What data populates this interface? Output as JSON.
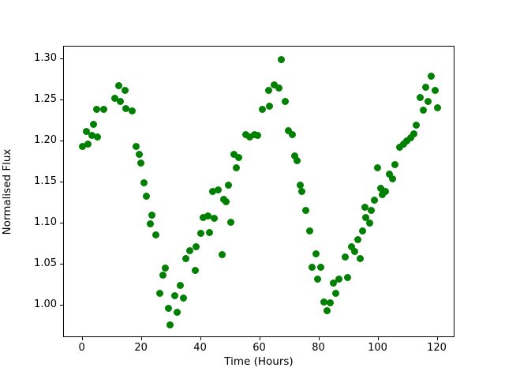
{
  "figure": {
    "background": "#ffffff"
  },
  "chart_data": {
    "type": "scatter",
    "title": "",
    "xlabel": "Time (Hours)",
    "ylabel": "Normalised Flux",
    "marker_color": "#008000",
    "marker_diameter_px": 9,
    "grid": false,
    "legend": null,
    "xlim": [
      -6.3,
      126.0
    ],
    "ylim": [
      0.9598,
      1.3162
    ],
    "x_ticks": [
      0,
      20,
      40,
      60,
      80,
      100,
      120
    ],
    "x_tick_labels": [
      "0",
      "20",
      "40",
      "60",
      "80",
      "100",
      "120"
    ],
    "y_ticks": [
      1.0,
      1.05,
      1.1,
      1.15,
      1.2,
      1.25,
      1.3
    ],
    "y_tick_labels": [
      "1.00",
      "1.05",
      "1.10",
      "1.15",
      "1.20",
      "1.25",
      "1.30"
    ],
    "series": [
      {
        "name": "normalised-flux",
        "points": [
          [
            0.0,
            1.194
          ],
          [
            1.2,
            1.212
          ],
          [
            1.9,
            1.197
          ],
          [
            3.1,
            1.207
          ],
          [
            3.8,
            1.221
          ],
          [
            4.9,
            1.239
          ],
          [
            5.1,
            1.205
          ],
          [
            7.1,
            1.239
          ],
          [
            10.8,
            1.253
          ],
          [
            12.2,
            1.268
          ],
          [
            12.7,
            1.249
          ],
          [
            14.5,
            1.262
          ],
          [
            14.7,
            1.24
          ],
          [
            16.7,
            1.237
          ],
          [
            18.0,
            1.194
          ],
          [
            19.1,
            1.184
          ],
          [
            19.7,
            1.174
          ],
          [
            20.9,
            1.149
          ],
          [
            21.7,
            1.133
          ],
          [
            22.8,
            1.099
          ],
          [
            23.5,
            1.11
          ],
          [
            24.9,
            1.086
          ],
          [
            26.2,
            1.014
          ],
          [
            27.1,
            1.037
          ],
          [
            28.1,
            1.045
          ],
          [
            29.1,
            0.996
          ],
          [
            29.7,
            0.976
          ],
          [
            31.1,
            1.012
          ],
          [
            32.0,
            0.991
          ],
          [
            33.1,
            1.024
          ],
          [
            34.0,
            1.009
          ],
          [
            34.9,
            1.057
          ],
          [
            36.3,
            1.067
          ],
          [
            38.2,
            1.042
          ],
          [
            38.3,
            1.071
          ],
          [
            39.9,
            1.088
          ],
          [
            40.7,
            1.107
          ],
          [
            42.3,
            1.109
          ],
          [
            42.8,
            1.089
          ],
          [
            44.1,
            1.139
          ],
          [
            44.6,
            1.106
          ],
          [
            45.9,
            1.141
          ],
          [
            47.3,
            1.062
          ],
          [
            47.7,
            1.129
          ],
          [
            48.6,
            1.126
          ],
          [
            49.2,
            1.147
          ],
          [
            50.1,
            1.101
          ],
          [
            51.2,
            1.184
          ],
          [
            52.0,
            1.168
          ],
          [
            52.9,
            1.18
          ],
          [
            55.1,
            1.208
          ],
          [
            56.6,
            1.205
          ],
          [
            58.2,
            1.208
          ],
          [
            59.3,
            1.207
          ],
          [
            60.9,
            1.239
          ],
          [
            62.8,
            1.262
          ],
          [
            63.1,
            1.243
          ],
          [
            64.9,
            1.269
          ],
          [
            66.5,
            1.265
          ],
          [
            67.3,
            1.3
          ],
          [
            68.4,
            1.249
          ],
          [
            69.7,
            1.213
          ],
          [
            70.8,
            1.208
          ],
          [
            71.7,
            1.182
          ],
          [
            72.4,
            1.176
          ],
          [
            73.7,
            1.147
          ],
          [
            74.2,
            1.139
          ],
          [
            75.5,
            1.116
          ],
          [
            76.7,
            1.091
          ],
          [
            77.5,
            1.046
          ],
          [
            78.8,
            1.063
          ],
          [
            79.5,
            1.032
          ],
          [
            80.4,
            1.046
          ],
          [
            81.5,
            1.004
          ],
          [
            82.6,
            0.993
          ],
          [
            83.8,
            1.003
          ],
          [
            84.9,
            1.027
          ],
          [
            85.7,
            1.014
          ],
          [
            86.6,
            1.032
          ],
          [
            88.7,
            1.059
          ],
          [
            89.5,
            1.034
          ],
          [
            90.8,
            1.071
          ],
          [
            92.1,
            1.066
          ],
          [
            93.0,
            1.08
          ],
          [
            93.9,
            1.057
          ],
          [
            94.6,
            1.091
          ],
          [
            95.5,
            1.12
          ],
          [
            95.7,
            1.107
          ],
          [
            97.0,
            1.1
          ],
          [
            97.7,
            1.116
          ],
          [
            98.7,
            1.128
          ],
          [
            99.7,
            1.168
          ],
          [
            100.7,
            1.143
          ],
          [
            101.2,
            1.135
          ],
          [
            102.3,
            1.139
          ],
          [
            103.6,
            1.16
          ],
          [
            104.8,
            1.154
          ],
          [
            105.5,
            1.172
          ],
          [
            107.1,
            1.193
          ],
          [
            108.4,
            1.197
          ],
          [
            109.6,
            1.201
          ],
          [
            110.8,
            1.204
          ],
          [
            112.0,
            1.209
          ],
          [
            112.9,
            1.22
          ],
          [
            114.0,
            1.254
          ],
          [
            115.1,
            1.238
          ],
          [
            116.0,
            1.266
          ],
          [
            116.7,
            1.249
          ],
          [
            117.9,
            1.28
          ],
          [
            119.1,
            1.262
          ],
          [
            119.9,
            1.241
          ]
        ]
      }
    ]
  }
}
